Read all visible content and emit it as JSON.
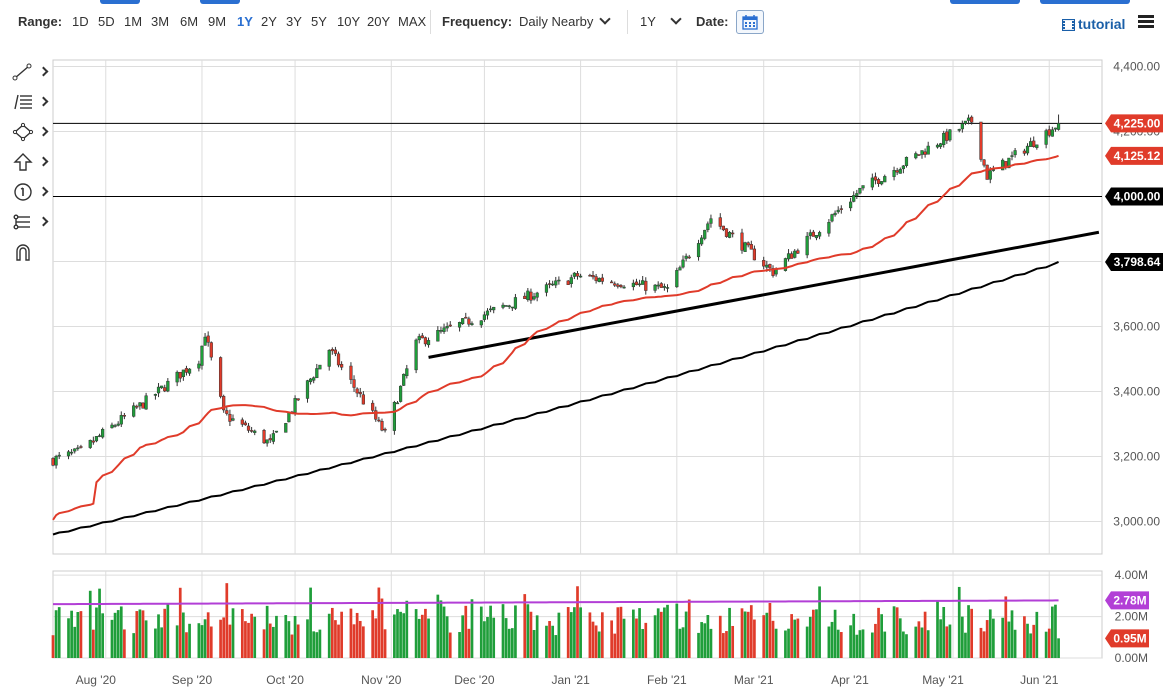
{
  "toolbar": {
    "range_label": "Range:",
    "ranges": [
      "1D",
      "5D",
      "1M",
      "3M",
      "6M",
      "9M",
      "1Y",
      "2Y",
      "3Y",
      "5Y",
      "10Y",
      "20Y",
      "MAX"
    ],
    "active_range": "1Y",
    "frequency_label": "Frequency:",
    "frequency_value": "Daily Nearby",
    "period_value": "1Y",
    "date_label": "Date:",
    "tutorial_label": "tutorial"
  },
  "tools": [
    "line-tool-icon",
    "fibonacci-tool-icon",
    "shape-tool-icon",
    "arrow-tool-icon",
    "annotation-tool-icon",
    "pattern-tool-icon",
    "magnet-icon"
  ],
  "colors": {
    "up": "#1f9e3a",
    "down": "#e03b2a",
    "ma50": "#e03b2a",
    "ma200": "#000000",
    "volume_avg": "#b23fd6",
    "grid": "#dddddd"
  },
  "chart_data": [
    {
      "type": "candlestick",
      "title": "",
      "xlabel": "",
      "ylabel": "",
      "x_tick_labels": [
        "Aug '20",
        "Sep '20",
        "Oct '20",
        "Nov '20",
        "Dec '20",
        "Jan '21",
        "Feb '21",
        "Mar '21",
        "Apr '21",
        "May '21",
        "Jun '21"
      ],
      "y_tick_labels": [
        "4,400.00",
        "4,200.00",
        "4,000.00",
        "3,800.00",
        "3,600.00",
        "3,400.00",
        "3,200.00",
        "3,000.00"
      ],
      "y_ticks": [
        4400,
        4200,
        4000,
        3800,
        3600,
        3400,
        3200,
        3000
      ],
      "ylim": [
        2900,
        4420
      ],
      "grid": true,
      "key_points": [
        {
          "date": "2020-07-15",
          "close": 3190
        },
        {
          "date": "2020-07-24",
          "close": 3215
        },
        {
          "date": "2020-07-31",
          "close": 3270
        },
        {
          "date": "2020-08-14",
          "close": 3370
        },
        {
          "date": "2020-08-31",
          "close": 3500
        },
        {
          "date": "2020-09-02",
          "close": 3580
        },
        {
          "date": "2020-09-08",
          "close": 3330
        },
        {
          "date": "2020-09-23",
          "close": 3240
        },
        {
          "date": "2020-10-12",
          "close": 3530
        },
        {
          "date": "2020-10-30",
          "close": 3270
        },
        {
          "date": "2020-11-09",
          "close": 3550
        },
        {
          "date": "2020-12-31",
          "close": 3756
        },
        {
          "date": "2021-01-29",
          "close": 3714
        },
        {
          "date": "2021-02-12",
          "close": 3934
        },
        {
          "date": "2021-03-04",
          "close": 3768
        },
        {
          "date": "2021-04-01",
          "close": 4019
        },
        {
          "date": "2021-05-07",
          "close": 4232
        },
        {
          "date": "2021-05-12",
          "close": 4063
        },
        {
          "date": "2021-06-04",
          "close": 4225
        }
      ],
      "moving_averages": [
        {
          "color": "#e03b2a",
          "start": 3005,
          "end": 4125.12
        },
        {
          "color": "#000000",
          "start": 2960,
          "end": 3798.64
        }
      ],
      "horizontal_lines": [
        {
          "value": 4225.0,
          "label": "4,225.00"
        },
        {
          "value": 4000.0,
          "label": "4,000.00"
        }
      ],
      "trendline": {
        "start": {
          "date": "2020-11-13",
          "value": 3505
        },
        "end": {
          "date": "2021-06-17",
          "value": 3890
        }
      },
      "price_tags": [
        {
          "label": "4,225.00",
          "value": 4225.0,
          "color": "#e03b2a"
        },
        {
          "label": "4,125.12",
          "value": 4125.12,
          "color": "#e03b2a"
        },
        {
          "label": "4,000.00",
          "value": 4000.0,
          "color": "#000000"
        },
        {
          "label": "3,798.64",
          "value": 3798.64,
          "color": "#000000"
        }
      ]
    },
    {
      "type": "bar",
      "title": "",
      "xlabel": "",
      "ylabel": "",
      "y_tick_labels": [
        "4.00M",
        "2.00M",
        "0.00M"
      ],
      "y_ticks": [
        4.0,
        2.0,
        0.0
      ],
      "ylim": [
        0,
        4.2
      ],
      "average_start": 2.6,
      "average_end": 2.78,
      "price_tags": [
        {
          "label": "2.78M",
          "value": 2.78,
          "color": "#b23fd6"
        },
        {
          "label": "0.95M",
          "value": 0.95,
          "color": "#e03b2a"
        }
      ]
    }
  ]
}
